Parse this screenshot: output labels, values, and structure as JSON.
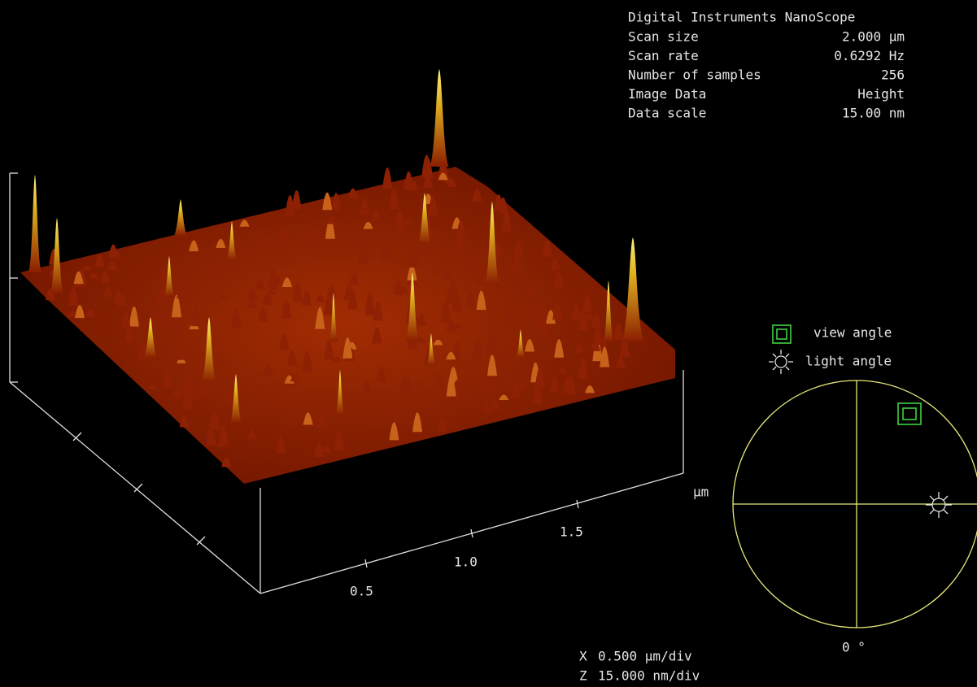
{
  "info": {
    "title": "Digital Instruments NanoScope",
    "rows": [
      [
        "Scan size",
        "2.000 µm"
      ],
      [
        "Scan rate",
        "0.6292 Hz"
      ],
      [
        "Number of samples",
        "256"
      ],
      [
        "Image Data",
        "Height"
      ],
      [
        "Data scale",
        "15.00 nm"
      ]
    ]
  },
  "axis": {
    "ticks": [
      "0.5",
      "1.0",
      "1.5"
    ],
    "unit": "µm"
  },
  "angles": {
    "view": "view angle",
    "light": "light angle",
    "rotation": "0 °"
  },
  "scale": [
    [
      "X",
      "0.500 µm/div"
    ],
    [
      "Z",
      "15.000 nm/div"
    ]
  ]
}
